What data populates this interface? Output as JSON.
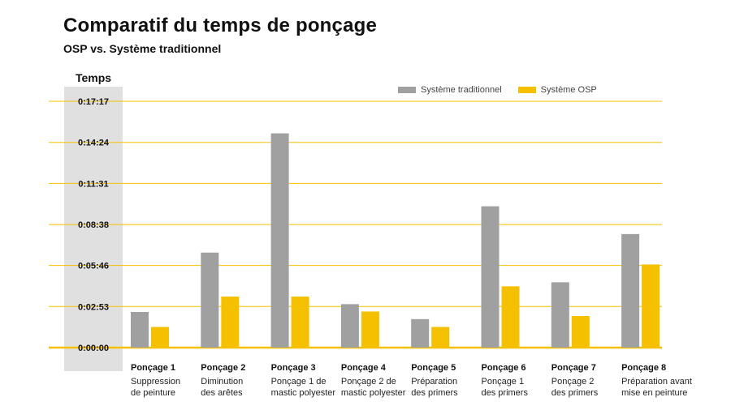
{
  "chart_data": {
    "type": "bar",
    "title": "Comparatif du temps de ponçage",
    "subtitle": "OSP vs. Système traditionnel",
    "ylabel": "Temps",
    "ylim": [
      0,
      1037
    ],
    "yticks": [
      0,
      173,
      346,
      518,
      691,
      864,
      1037
    ],
    "ytick_labels": [
      "0:00:00",
      "0:02:53",
      "0:05:46",
      "0:08:38",
      "0:11:31",
      "0:14:24",
      "0:17:17"
    ],
    "legend_placement": "top-right",
    "grid": true,
    "categories": [
      {
        "name": "Ponçage 1",
        "desc": "Suppression\nde peinture"
      },
      {
        "name": "Ponçage 2",
        "desc": "Diminution\ndes arêtes"
      },
      {
        "name": "Ponçage 3",
        "desc": "Ponçage 1 de\nmastic polyester"
      },
      {
        "name": "Ponçage 4",
        "desc": "Ponçage 2 de\nmastic polyester"
      },
      {
        "name": "Ponçage 5",
        "desc": "Préparation\ndes primers"
      },
      {
        "name": "Ponçage 6",
        "desc": "Ponçage 1\ndes primers"
      },
      {
        "name": "Ponçage 7",
        "desc": "Ponçage 2\ndes primers"
      },
      {
        "name": "Ponçage 8",
        "desc": "Préparation avant\nmise en peinture"
      }
    ],
    "series": [
      {
        "name": "Système traditionnel",
        "color": "#a0a0a0",
        "values": [
          150,
          400,
          902,
          183,
          120,
          595,
          275,
          478
        ]
      },
      {
        "name": "Système OSP",
        "color": "#f5c000",
        "values": [
          87,
          215,
          215,
          152,
          87,
          258,
          133,
          350
        ]
      }
    ]
  },
  "colors": {
    "accent": "#f5c000",
    "grid": "#f5c000",
    "axis_band": "#e0e0e0"
  }
}
